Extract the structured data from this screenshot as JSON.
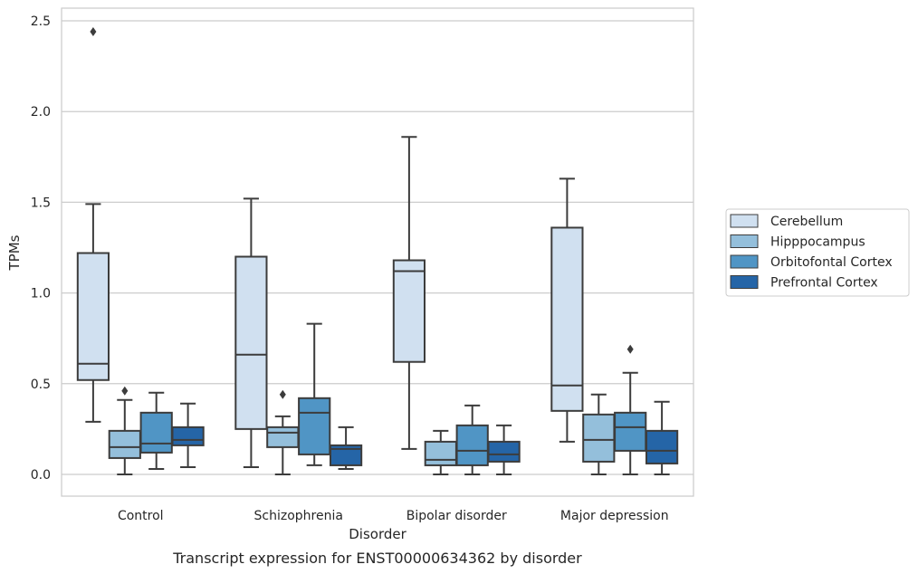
{
  "chart_data": {
    "type": "boxplot",
    "caption": "Transcript expression for ENST00000634362 by disorder",
    "xlabel": "Disorder",
    "ylabel": "TPMs",
    "ylim": [
      -0.12,
      2.57
    ],
    "yticks": [
      0.0,
      0.5,
      1.0,
      1.5,
      2.0,
      2.5
    ],
    "ytick_labels": [
      "0.0",
      "0.5",
      "1.0",
      "1.5",
      "2.0",
      "2.5"
    ],
    "categories": [
      "Control",
      "Schizophrenia",
      "Bipolar disorder",
      "Major depression"
    ],
    "grid": true,
    "legend_position": "right",
    "series": [
      {
        "name": "Cerebellum",
        "color": "#d0e0f0",
        "boxes": [
          {
            "whislo": 0.29,
            "q1": 0.52,
            "med": 0.61,
            "q3": 1.22,
            "whishi": 1.49,
            "fliers": [
              2.44
            ]
          },
          {
            "whislo": 0.04,
            "q1": 0.25,
            "med": 0.66,
            "q3": 1.2,
            "whishi": 1.52,
            "fliers": []
          },
          {
            "whislo": 0.14,
            "q1": 0.62,
            "med": 1.12,
            "q3": 1.18,
            "whishi": 1.86,
            "fliers": []
          },
          {
            "whislo": 0.18,
            "q1": 0.35,
            "med": 0.49,
            "q3": 1.36,
            "whishi": 1.63,
            "fliers": []
          }
        ]
      },
      {
        "name": "Hipppocampus",
        "color": "#94bfdb",
        "boxes": [
          {
            "whislo": 0.0,
            "q1": 0.09,
            "med": 0.15,
            "q3": 0.24,
            "whishi": 0.41,
            "fliers": [
              0.46
            ]
          },
          {
            "whislo": 0.0,
            "q1": 0.15,
            "med": 0.23,
            "q3": 0.26,
            "whishi": 0.32,
            "fliers": [
              0.44
            ]
          },
          {
            "whislo": 0.0,
            "q1": 0.05,
            "med": 0.08,
            "q3": 0.18,
            "whishi": 0.24,
            "fliers": []
          },
          {
            "whislo": 0.0,
            "q1": 0.07,
            "med": 0.19,
            "q3": 0.33,
            "whishi": 0.44,
            "fliers": []
          }
        ]
      },
      {
        "name": "Orbitofontal Cortex",
        "color": "#5095c5",
        "boxes": [
          {
            "whislo": 0.03,
            "q1": 0.12,
            "med": 0.17,
            "q3": 0.34,
            "whishi": 0.45,
            "fliers": []
          },
          {
            "whislo": 0.05,
            "q1": 0.11,
            "med": 0.34,
            "q3": 0.42,
            "whishi": 0.83,
            "fliers": []
          },
          {
            "whislo": 0.0,
            "q1": 0.05,
            "med": 0.13,
            "q3": 0.27,
            "whishi": 0.38,
            "fliers": []
          },
          {
            "whislo": 0.0,
            "q1": 0.13,
            "med": 0.26,
            "q3": 0.34,
            "whishi": 0.56,
            "fliers": [
              0.69
            ]
          }
        ]
      },
      {
        "name": "Prefrontal Cortex",
        "color": "#2565a7",
        "boxes": [
          {
            "whislo": 0.04,
            "q1": 0.16,
            "med": 0.19,
            "q3": 0.26,
            "whishi": 0.39,
            "fliers": []
          },
          {
            "whislo": 0.03,
            "q1": 0.05,
            "med": 0.14,
            "q3": 0.16,
            "whishi": 0.26,
            "fliers": []
          },
          {
            "whislo": 0.0,
            "q1": 0.07,
            "med": 0.11,
            "q3": 0.18,
            "whishi": 0.27,
            "fliers": []
          },
          {
            "whislo": 0.0,
            "q1": 0.06,
            "med": 0.13,
            "q3": 0.24,
            "whishi": 0.4,
            "fliers": []
          }
        ]
      }
    ]
  }
}
